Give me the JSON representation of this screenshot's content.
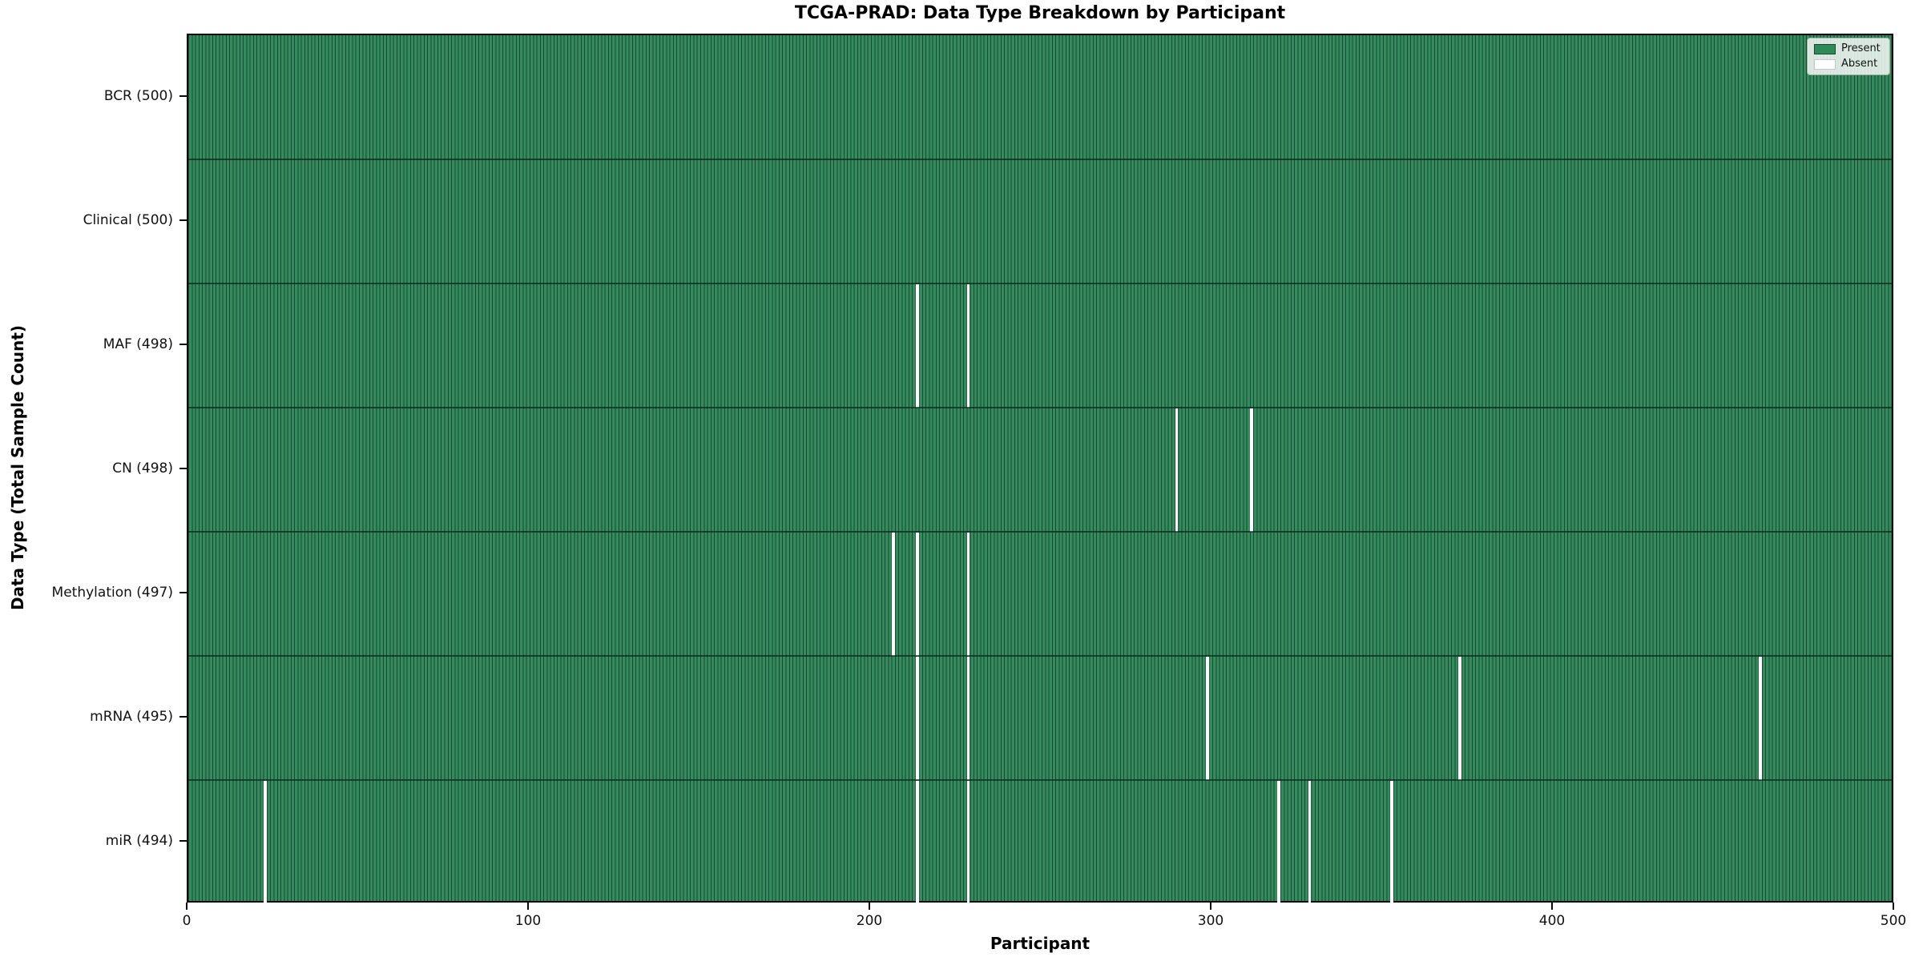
{
  "title": "TCGA-PRAD: Data Type Breakdown by Participant",
  "xlabel": "Participant",
  "ylabel": "Data Type (Total Sample Count)",
  "legend": {
    "present": "Present",
    "absent": "Absent"
  },
  "colors": {
    "present_fill": "#348b5e",
    "bar_edge": "#1c4731",
    "absent": "#ffffff",
    "legend_present_swatch": "#2e8b57",
    "legend_absent_swatch": "#ffffff"
  },
  "chart_data": {
    "type": "heatmap",
    "title": "TCGA-PRAD: Data Type Breakdown by Participant",
    "xlabel": "Participant",
    "ylabel": "Data Type (Total Sample Count)",
    "xlim": [
      0,
      500
    ],
    "x_ticks": [
      0,
      100,
      200,
      300,
      400,
      500
    ],
    "n_participants": 500,
    "grid": false,
    "legend_position": "upper right",
    "legend_entries": [
      {
        "label": "Present",
        "color": "#2e8b57"
      },
      {
        "label": "Absent",
        "color": "#ffffff"
      }
    ],
    "rows": [
      {
        "label": "BCR (500)",
        "data_type": "BCR",
        "total": 500,
        "absent_participants": []
      },
      {
        "label": "Clinical (500)",
        "data_type": "Clinical",
        "total": 500,
        "absent_participants": []
      },
      {
        "label": "MAF (498)",
        "data_type": "MAF",
        "total": 498,
        "absent_participants": [
          213,
          228
        ]
      },
      {
        "label": "CN (498)",
        "data_type": "CN",
        "total": 498,
        "absent_participants": [
          289,
          311
        ]
      },
      {
        "label": "Methylation (497)",
        "data_type": "Methylation",
        "total": 497,
        "absent_participants": [
          206,
          213,
          228
        ]
      },
      {
        "label": "mRNA (495)",
        "data_type": "mRNA",
        "total": 495,
        "absent_participants": [
          213,
          228,
          298,
          372,
          460
        ]
      },
      {
        "label": "miR (494)",
        "data_type": "miR",
        "total": 494,
        "absent_participants": [
          22,
          213,
          228,
          319,
          328,
          352
        ]
      }
    ]
  }
}
